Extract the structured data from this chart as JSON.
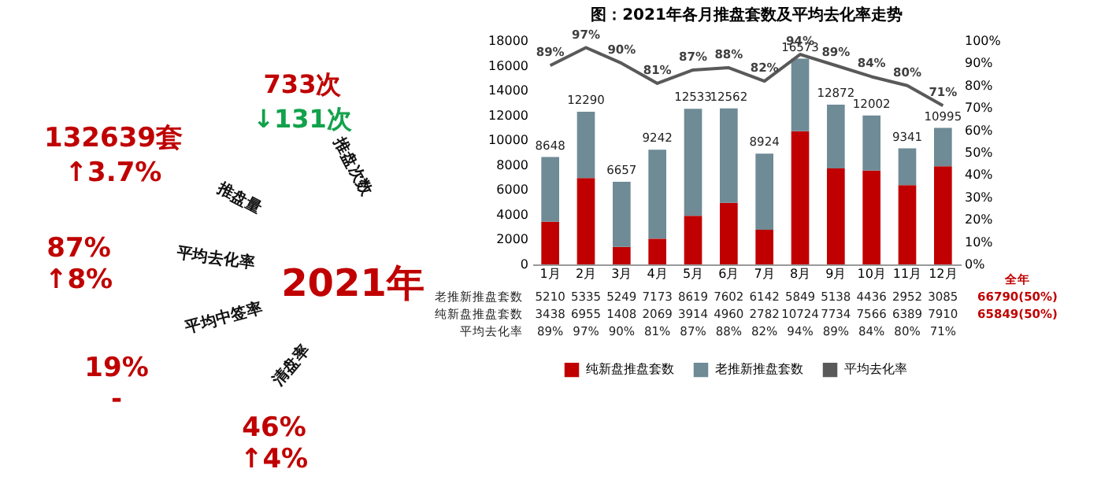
{
  "chart_data": [
    {
      "type": "other",
      "annotations": [
        "132639套",
        "↑3.7%",
        "733次",
        "↓131次",
        "87%",
        "↑8%",
        "19%",
        "-",
        "46%",
        "↑4%",
        "2021年",
        "推盘量",
        "推盘次数",
        "平均去化率",
        "平均中签率",
        "清盘率"
      ]
    },
    {
      "type": "bar",
      "title": "图：2021年各月推盘套数及平均去化率走势",
      "categories": [
        "1月",
        "2月",
        "3月",
        "4月",
        "5月",
        "6月",
        "7月",
        "8月",
        "9月",
        "10月",
        "11月",
        "12月"
      ],
      "stacked": true,
      "series": [
        {
          "name": "纯新盘推盘套数",
          "color": "#c00000",
          "values": [
            3438,
            6955,
            1408,
            2069,
            3914,
            4960,
            2782,
            10724,
            7734,
            7566,
            6389,
            7910
          ]
        },
        {
          "name": "老推新推盘套数",
          "color": "#6e8b96",
          "values": [
            5210,
            5335,
            5249,
            7173,
            8619,
            7602,
            6142,
            5849,
            5138,
            4436,
            2952,
            3085
          ]
        },
        {
          "name": "平均去化率",
          "type": "line",
          "axis": "y2",
          "color": "#595959",
          "values": [
            89,
            97,
            90,
            81,
            87,
            88,
            82,
            94,
            89,
            84,
            80,
            71
          ],
          "value_labels": [
            "89%",
            "97%",
            "90%",
            "81%",
            "87%",
            "88%",
            "82%",
            "94%",
            "89%",
            "84%",
            "80%",
            "71%"
          ]
        }
      ],
      "totals": [
        "8648",
        "12290",
        "6657",
        "9242",
        "12533",
        "12562",
        "8924",
        "16573",
        "12872",
        "12002",
        "9341",
        "10995"
      ],
      "ylim": [
        0,
        18000
      ],
      "yticks": [
        0,
        2000,
        4000,
        6000,
        8000,
        10000,
        12000,
        14000,
        16000,
        18000
      ],
      "y2lim": [
        0,
        100
      ],
      "y2ticks": [
        {
          "value": 0,
          "label": "0%"
        },
        {
          "value": 10,
          "label": "10%"
        },
        {
          "value": 20,
          "label": "20%"
        },
        {
          "value": 30,
          "label": "30%"
        },
        {
          "value": 40,
          "label": "40%"
        },
        {
          "value": 50,
          "label": "50%"
        },
        {
          "value": 60,
          "label": "60%"
        },
        {
          "value": 70,
          "label": "70%"
        },
        {
          "value": 80,
          "label": "80%"
        },
        {
          "value": 90,
          "label": "90%"
        },
        {
          "value": 100,
          "label": "100%"
        }
      ],
      "data_labels": true,
      "legend": "bottom",
      "grid": false,
      "annotations": [
        "全年",
        "66790(50%)",
        "65849(50%)"
      ]
    }
  ]
}
